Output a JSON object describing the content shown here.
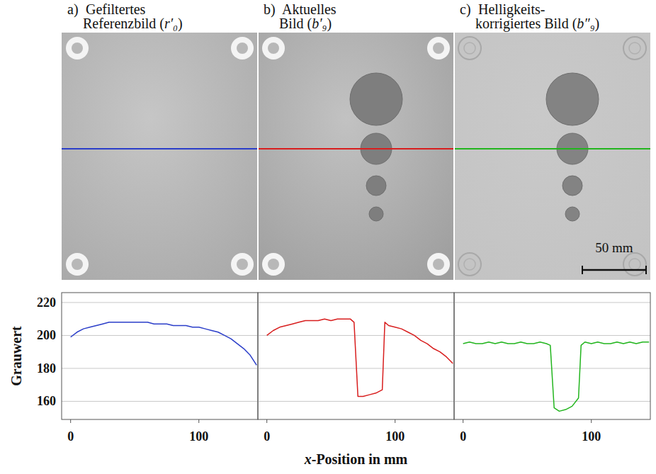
{
  "chart_data": [
    {
      "type": "line",
      "label": "a)",
      "title": "Gefiltertes Referenzbild (r′₀)",
      "y_label": "Grauwert",
      "color": "#2b3ec9",
      "grid": true,
      "tick_labels": true,
      "xlim": [
        -7,
        146
      ],
      "ylim": [
        149,
        226
      ],
      "xticks": [
        0,
        100
      ],
      "yticks": [
        160,
        180,
        200,
        220
      ],
      "x": [
        0,
        5,
        10,
        15,
        20,
        25,
        30,
        35,
        40,
        45,
        50,
        55,
        60,
        65,
        70,
        75,
        80,
        85,
        90,
        95,
        100,
        105,
        110,
        115,
        120,
        125,
        130,
        135,
        140,
        145
      ],
      "values": [
        199,
        202,
        204,
        205,
        206,
        207,
        208,
        208,
        208,
        208,
        208,
        208,
        208,
        207,
        207,
        207,
        206,
        206,
        206,
        205,
        205,
        204,
        203,
        202,
        200,
        198,
        195,
        192,
        188,
        182
      ]
    },
    {
      "type": "line",
      "label": "b)",
      "title": "Aktuelles Bild (b′₉)",
      "x_label": "x-Position in mm",
      "color": "#d81e1e",
      "grid": true,
      "tick_labels": "x",
      "xlim": [
        -7,
        146
      ],
      "ylim": [
        149,
        226
      ],
      "xticks": [
        0,
        100
      ],
      "yticks": [
        160,
        180,
        200,
        220
      ],
      "x": [
        0,
        5,
        10,
        15,
        20,
        25,
        30,
        35,
        40,
        45,
        50,
        55,
        60,
        65,
        68,
        71,
        75,
        80,
        85,
        90,
        92,
        95,
        100,
        105,
        110,
        115,
        120,
        125,
        130,
        135,
        140,
        145
      ],
      "values": [
        200,
        203,
        205,
        206,
        207,
        208,
        209,
        209,
        209,
        210,
        209,
        210,
        210,
        210,
        208,
        163,
        163,
        164,
        165,
        167,
        208,
        206,
        205,
        204,
        202,
        200,
        197,
        195,
        192,
        190,
        187,
        183
      ]
    },
    {
      "type": "line",
      "label": "c)",
      "title": "Helligkeits-korrigiertes Bild (b″₉)",
      "annotation": "50 mm",
      "color": "#22b51e",
      "grid": true,
      "tick_labels": "x",
      "xlim": [
        -7,
        146
      ],
      "ylim": [
        149,
        226
      ],
      "xticks": [
        0,
        100
      ],
      "yticks": [
        160,
        180,
        200,
        220
      ],
      "x": [
        0,
        5,
        10,
        15,
        20,
        25,
        30,
        35,
        40,
        45,
        50,
        55,
        60,
        65,
        68,
        71,
        75,
        80,
        85,
        90,
        92,
        95,
        100,
        105,
        110,
        115,
        120,
        125,
        130,
        135,
        140,
        145
      ],
      "values": [
        195,
        196,
        195,
        195,
        196,
        195,
        196,
        195,
        195,
        196,
        195,
        195,
        196,
        195,
        194,
        156,
        154,
        155,
        157,
        162,
        194,
        196,
        195,
        196,
        195,
        195,
        196,
        195,
        196,
        195,
        196,
        196
      ]
    }
  ]
}
